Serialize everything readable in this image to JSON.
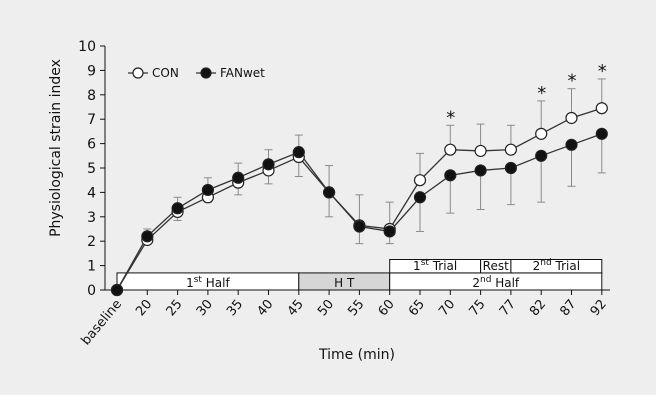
{
  "chart_data": {
    "type": "line",
    "xlabel": "Time (min)",
    "ylabel": "Physiological strain index",
    "ylim": [
      0,
      10
    ],
    "yticks": [
      0,
      1,
      2,
      3,
      4,
      5,
      6,
      7,
      8,
      9,
      10
    ],
    "x": [
      "baseline",
      "20",
      "25",
      "30",
      "35",
      "40",
      "45",
      "50",
      "55",
      "60",
      "65",
      "70",
      "75",
      "77",
      "82",
      "87",
      "92"
    ],
    "series": [
      {
        "name": "CON",
        "marker": "open-circle",
        "values": [
          0,
          2.05,
          3.2,
          3.8,
          4.4,
          4.9,
          5.45,
          4.0,
          2.65,
          2.5,
          4.5,
          5.75,
          5.7,
          5.75,
          6.4,
          7.05,
          7.45
        ],
        "err_upper": [
          null,
          null,
          null,
          null,
          null,
          null,
          0.9,
          1.1,
          1.25,
          1.1,
          1.1,
          1.0,
          1.1,
          1.0,
          1.35,
          1.2,
          1.2
        ]
      },
      {
        "name": "FANwet",
        "marker": "filled-circle",
        "values": [
          0,
          2.2,
          3.35,
          4.1,
          4.6,
          5.15,
          5.65,
          4.0,
          2.6,
          2.4,
          3.8,
          4.7,
          4.9,
          5.0,
          5.5,
          5.95,
          6.4
        ],
        "err_lower": [
          null,
          0.3,
          0.5,
          0.5,
          0.7,
          0.8,
          1.0,
          1.0,
          0.7,
          0.5,
          1.4,
          1.55,
          1.6,
          1.5,
          1.9,
          1.7,
          1.6
        ],
        "err_upper": [
          null,
          0.3,
          0.45,
          0.5,
          0.6,
          0.6,
          null,
          null,
          null,
          null,
          null,
          null,
          null,
          null,
          null,
          null,
          null
        ]
      }
    ],
    "significance_markers": {
      "symbol": "*",
      "at": [
        "70",
        "82",
        "87",
        "92"
      ]
    },
    "phase_bars": {
      "lower": [
        {
          "base": "1",
          "sup": "st",
          "rest": " Half",
          "from": "baseline",
          "to": "45",
          "shaded": false
        },
        {
          "base": "H T",
          "sup": "",
          "rest": "",
          "from": "45",
          "to": "60",
          "shaded": true
        },
        {
          "base": "2",
          "sup": "nd",
          "rest": " Half",
          "from": "60",
          "to": "92",
          "shaded": false
        }
      ],
      "upper": [
        {
          "base": "1",
          "sup": "st",
          "rest": " Trial",
          "from": "60",
          "to": "75"
        },
        {
          "base": "Rest",
          "sup": "",
          "rest": "",
          "from": "75",
          "to": "77"
        },
        {
          "base": "2",
          "sup": "nd",
          "rest": " Trial",
          "from": "77",
          "to": "92"
        }
      ]
    },
    "legend_position": "top-left",
    "grid": false
  }
}
